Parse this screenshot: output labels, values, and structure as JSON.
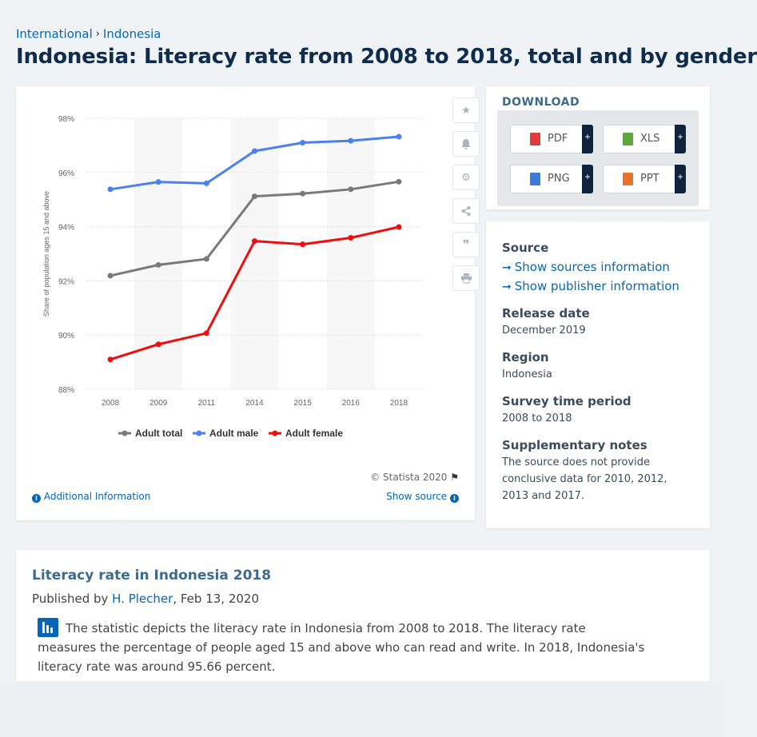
{
  "breadcrumb": {
    "items": [
      "International",
      "Indonesia"
    ]
  },
  "page": {
    "title": "Indonesia: Literacy rate from 2008 to 2018, total and by gender"
  },
  "chart_data": {
    "type": "line",
    "x": [
      "2008",
      "2009",
      "2011",
      "2014",
      "2015",
      "2016",
      "2018"
    ],
    "series": [
      {
        "name": "Adult total",
        "color": "#7a7a7a",
        "values": [
          92.19,
          92.59,
          92.81,
          95.12,
          95.22,
          95.38,
          95.66
        ]
      },
      {
        "name": "Adult male",
        "color": "#4a80f0",
        "values": [
          95.38,
          95.65,
          95.6,
          96.79,
          97.1,
          97.17,
          97.32
        ]
      },
      {
        "name": "Adult female",
        "color": "#f20c0c",
        "values": [
          89.1,
          89.66,
          90.07,
          93.47,
          93.35,
          93.59,
          93.99
        ]
      }
    ],
    "yticks": [
      "88%",
      "90%",
      "92%",
      "94%",
      "96%",
      "98%"
    ],
    "ylim": [
      88,
      98
    ],
    "ylabel": "Share of population ages 15 and above",
    "xlabel": "",
    "legend_position": "bottom",
    "grid": true
  },
  "chart_footer": {
    "copyright": "© Statista 2020",
    "additional_info": "Additional Information",
    "show_source": "Show source"
  },
  "sidebar_tools": [
    "star-icon",
    "bell-icon",
    "gear-icon",
    "share-icon",
    "quote-icon",
    "print-icon"
  ],
  "download": {
    "title": "DOWNLOAD",
    "buttons": [
      {
        "label": "PDF",
        "color": "#e03c3c"
      },
      {
        "label": "XLS",
        "color": "#5aa83a"
      },
      {
        "label": "PNG",
        "color": "#3a7bd5"
      },
      {
        "label": "PPT",
        "color": "#e8742c"
      }
    ],
    "plus": "+"
  },
  "info": {
    "source_label": "Source",
    "show_sources": "Show sources information",
    "show_publisher": "Show publisher information",
    "release_label": "Release date",
    "release_value": "December 2019",
    "region_label": "Region",
    "region_value": "Indonesia",
    "survey_label": "Survey time period",
    "survey_value": "2008 to 2018",
    "notes_label": "Supplementary notes",
    "notes_value": "The source does not provide conclusive data for 2010, 2012, 2013 and 2017."
  },
  "description": {
    "title": "Literacy rate in Indonesia 2018",
    "published_prefix": "Published by",
    "author": "H. Plecher",
    "date": ", Feb 13, 2020",
    "text": "The statistic depicts the literacy rate in Indonesia from 2008 to 2018. The literacy rate measures the percentage of people aged 15 and above who can read and write. In 2018, Indonesia's literacy rate was around 95.66 percent."
  }
}
